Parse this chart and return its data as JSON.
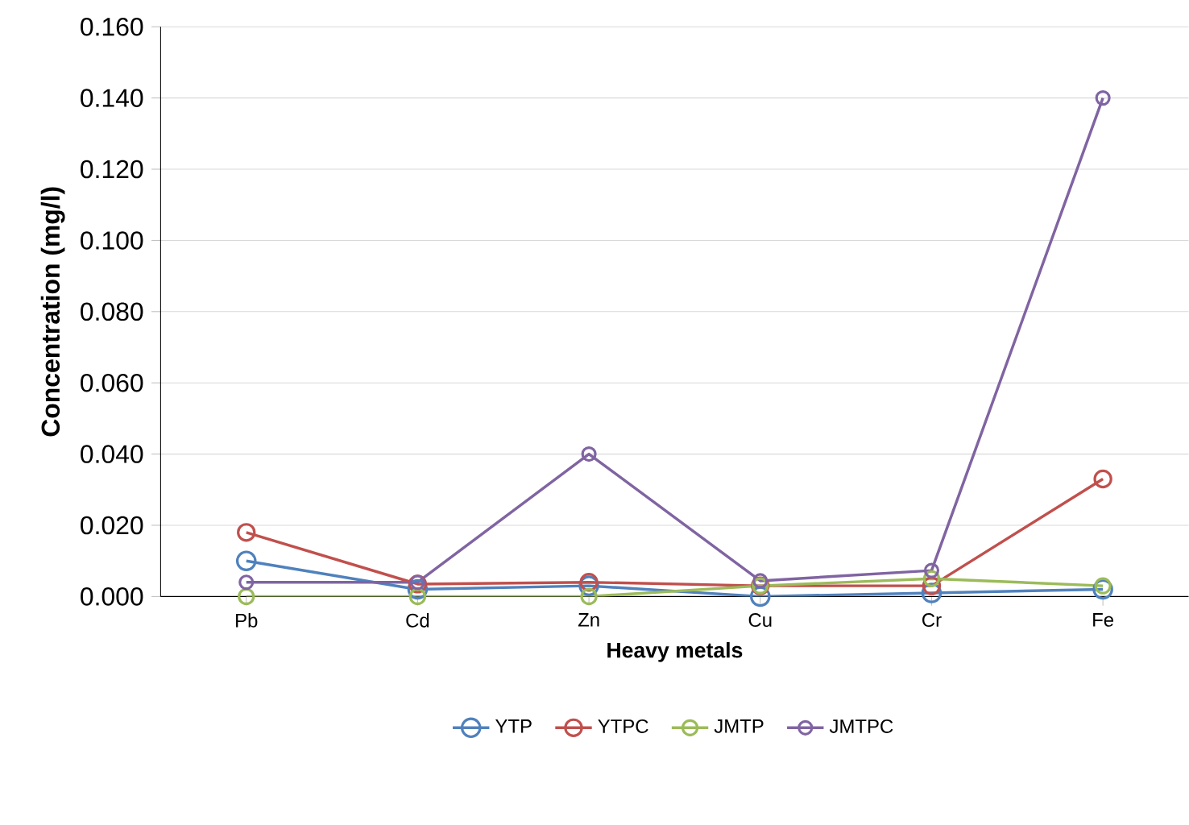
{
  "chart_data": {
    "type": "line",
    "xlabel": "Heavy metals",
    "ylabel": "Concentration (mg/l)",
    "categories": [
      "Pb",
      "Cd",
      "Zn",
      "Cu",
      "Cr",
      "Fe"
    ],
    "series": [
      {
        "name": "YTP",
        "color": "#4f81bd",
        "values": [
          0.01,
          0.002,
          0.003,
          0.0,
          0.001,
          0.002
        ]
      },
      {
        "name": "YTPC",
        "color": "#c0504d",
        "values": [
          0.018,
          0.0035,
          0.004,
          0.003,
          0.003,
          0.033
        ]
      },
      {
        "name": "JMTP",
        "color": "#9bbb59",
        "values": [
          0.0,
          0.0,
          0.0,
          0.003,
          0.005,
          0.003
        ]
      },
      {
        "name": "JMTPC",
        "color": "#8064a2",
        "values": [
          0.004,
          0.004,
          0.04,
          0.0044,
          0.0073,
          0.14
        ]
      }
    ],
    "ylim": [
      0,
      0.16
    ],
    "yticks": [
      {
        "value": 0,
        "label": "0.000"
      },
      {
        "value": 0.02,
        "label": "0.020"
      },
      {
        "value": 0.04,
        "label": "0.040"
      },
      {
        "value": 0.06,
        "label": "0.060"
      },
      {
        "value": 0.08,
        "label": "0.080"
      },
      {
        "value": 0.1,
        "label": "0.100"
      },
      {
        "value": 0.12,
        "label": "0.120"
      },
      {
        "value": 0.14,
        "label": "0.140"
      },
      {
        "value": 0.16,
        "label": "0.160"
      }
    ],
    "grid": "y",
    "legend": "bottom",
    "marker": "circle",
    "line_style": "solid"
  }
}
